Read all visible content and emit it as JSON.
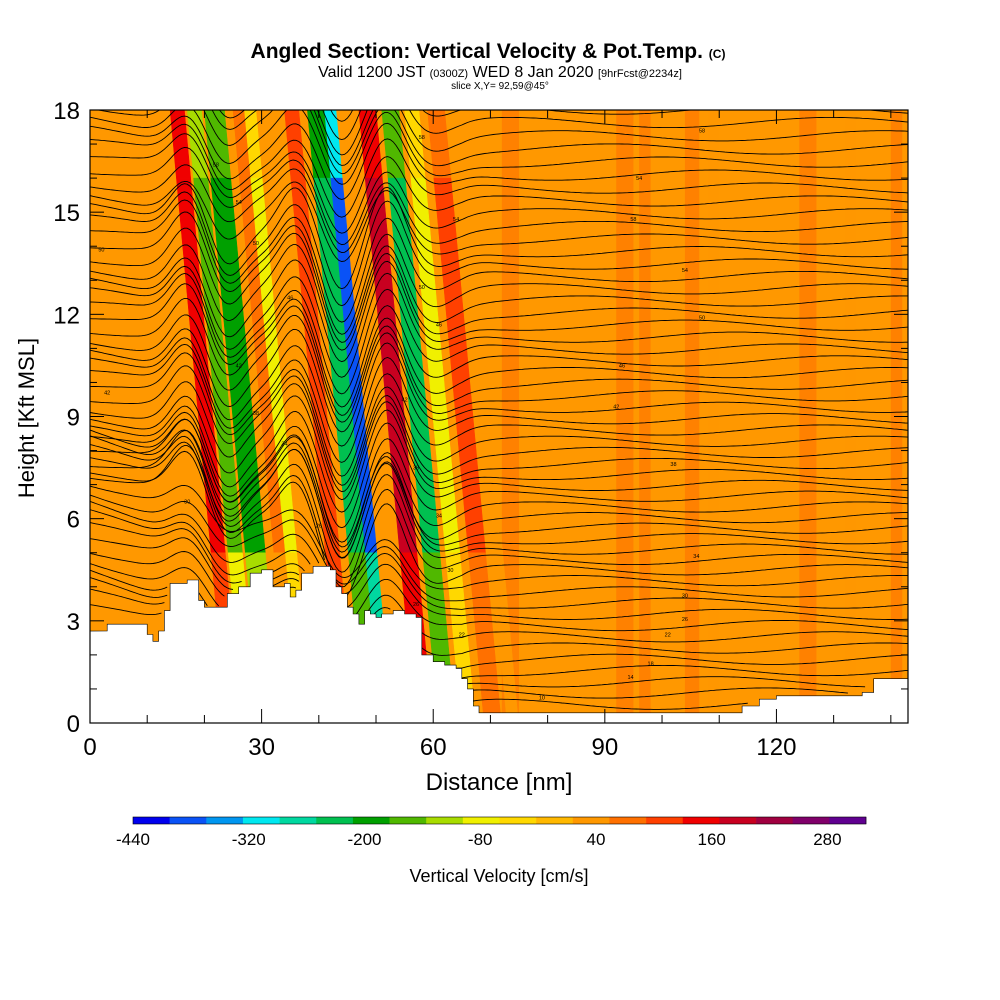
{
  "chart_data": {
    "type": "heatmap",
    "title": "Angled Section: Vertical Velocity & Pot.Temp.",
    "title_suffix": "(C)",
    "subtitle_parts": [
      "Valid 1200 JST",
      "(0300Z)",
      "WED 8 Jan 2020",
      "[9hrFcst@2234z]"
    ],
    "slice_label": "slice X,Y= 92,59@45°",
    "xlabel": "Distance [nm]",
    "ylabel": "Height [Kft MSL]",
    "xlim": [
      0,
      143
    ],
    "ylim": [
      0,
      18
    ],
    "x_ticks": [
      0,
      30,
      60,
      90,
      120
    ],
    "y_ticks": [
      0,
      3,
      6,
      9,
      12,
      15,
      18
    ],
    "colorbar": {
      "label": "Vertical Velocity [cm/s]",
      "tick_labels": [
        "-440",
        "-320",
        "-200",
        "-80",
        "40",
        "160",
        "280"
      ],
      "tick_values": [
        -440,
        -320,
        -200,
        -80,
        40,
        160,
        280
      ],
      "range": [
        -440,
        320
      ],
      "colors": [
        "#0000ee",
        "#0a52f6",
        "#0096f0",
        "#00e8f0",
        "#00d8a0",
        "#00c050",
        "#00a000",
        "#50b800",
        "#a8dc00",
        "#f0f000",
        "#ffd800",
        "#ffb800",
        "#ff9800",
        "#ff7000",
        "#ff4000",
        "#f00000",
        "#c80020",
        "#a00040",
        "#80006a",
        "#600090"
      ]
    },
    "terrain_height_kft": [
      [
        0,
        2.7
      ],
      [
        3,
        2.9
      ],
      [
        8,
        2.9
      ],
      [
        10,
        2.6
      ],
      [
        11,
        2.4
      ],
      [
        12,
        2.7
      ],
      [
        13,
        3.3
      ],
      [
        14,
        4.1
      ],
      [
        17,
        4.2
      ],
      [
        19,
        3.6
      ],
      [
        20,
        3.4
      ],
      [
        23,
        3.4
      ],
      [
        24,
        3.8
      ],
      [
        26,
        4.0
      ],
      [
        28,
        4.4
      ],
      [
        30,
        4.5
      ],
      [
        32,
        4.0
      ],
      [
        34,
        4.1
      ],
      [
        35,
        3.7
      ],
      [
        36,
        3.9
      ],
      [
        37,
        4.4
      ],
      [
        39,
        4.6
      ],
      [
        42,
        4.5
      ],
      [
        43,
        4.0
      ],
      [
        44,
        3.8
      ],
      [
        45,
        3.4
      ],
      [
        46,
        3.2
      ],
      [
        47,
        2.9
      ],
      [
        48,
        3.3
      ],
      [
        49,
        3.2
      ],
      [
        50,
        3.1
      ],
      [
        51,
        3.2
      ],
      [
        52,
        3.2
      ],
      [
        53,
        3.3
      ],
      [
        55,
        3.2
      ],
      [
        57,
        3.1
      ],
      [
        58,
        2.0
      ],
      [
        60,
        1.8
      ],
      [
        62,
        1.7
      ],
      [
        64,
        1.6
      ],
      [
        65,
        1.3
      ],
      [
        66,
        1.0
      ],
      [
        67,
        0.5
      ],
      [
        68,
        0.3
      ],
      [
        72,
        0.3
      ],
      [
        80,
        0.3
      ],
      [
        90,
        0.3
      ],
      [
        100,
        0.3
      ],
      [
        110,
        0.3
      ],
      [
        114,
        0.5
      ],
      [
        117,
        0.7
      ],
      [
        120,
        0.8
      ],
      [
        128,
        0.8
      ],
      [
        135,
        0.9
      ],
      [
        137,
        1.3
      ],
      [
        143,
        1.3
      ]
    ],
    "vertical_velocity_bands": [
      {
        "x": 14,
        "w": 2.5,
        "value": 160
      },
      {
        "x": 17,
        "w": 2.5,
        "value": -150
      },
      {
        "x": 20,
        "w": 3.5,
        "value": -200
      },
      {
        "x": 25,
        "w": 2.5,
        "value": 60
      },
      {
        "x": 27,
        "w": 2.0,
        "value": -80
      },
      {
        "x": 30,
        "w": 2.5,
        "value": 40
      },
      {
        "x": 34,
        "w": 2.5,
        "value": 120
      },
      {
        "x": 38,
        "w": 3.5,
        "value": -230
      },
      {
        "x": 41,
        "w": 2.0,
        "value": -380
      },
      {
        "x": 44,
        "w": 2.0,
        "value": 50
      },
      {
        "x": 47,
        "w": 3.0,
        "value": 190
      },
      {
        "x": 51,
        "w": 3.0,
        "value": -220
      },
      {
        "x": 55,
        "w": 2.5,
        "value": -80
      },
      {
        "x": 59,
        "w": 3.0,
        "value": 100
      },
      {
        "x": 63,
        "w": 2.0,
        "value": 40
      }
    ],
    "background_velocity": 30,
    "potential_temperature_contours": {
      "interval": 2,
      "lowest": 6,
      "label_values": [
        "6",
        "10",
        "14",
        "18",
        "22",
        "26",
        "30",
        "34",
        "38",
        "42",
        "46",
        "50",
        "54",
        "58"
      ]
    }
  }
}
